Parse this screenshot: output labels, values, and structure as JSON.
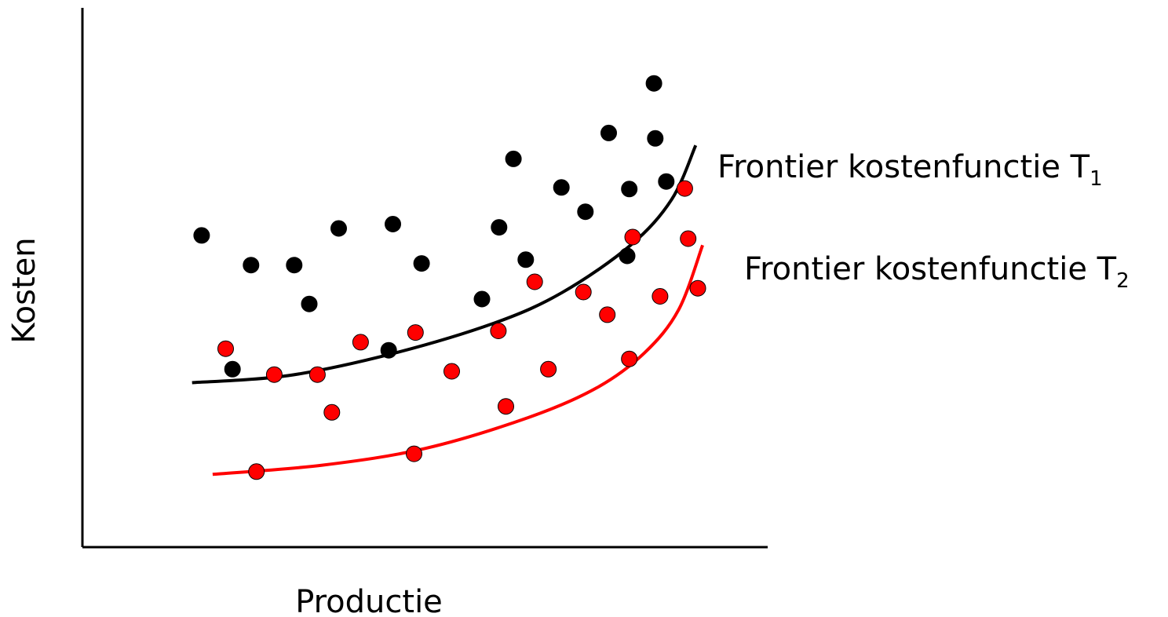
{
  "chart_data": {
    "type": "scatter",
    "xlabel": "Productie",
    "ylabel": "Kosten",
    "axis_ticks": false,
    "xlim": [
      0,
      100
    ],
    "ylim": [
      0,
      100
    ],
    "colors": {
      "t1": "#000000",
      "t2": "#ff0000"
    },
    "series": [
      {
        "color": "#000000",
        "values": [
          [
            17.4,
            57.8
          ],
          [
            24.6,
            52.3
          ],
          [
            30.9,
            52.3
          ],
          [
            33.1,
            45.1
          ],
          [
            37.4,
            59.1
          ],
          [
            45.3,
            59.9
          ],
          [
            49.5,
            52.6
          ],
          [
            44.7,
            36.5
          ],
          [
            21.9,
            33.0
          ],
          [
            58.3,
            46.0
          ],
          [
            60.8,
            59.3
          ],
          [
            62.9,
            72.0
          ],
          [
            64.7,
            53.3
          ],
          [
            69.9,
            66.7
          ],
          [
            73.4,
            62.2
          ],
          [
            76.8,
            76.8
          ],
          [
            79.5,
            54.0
          ],
          [
            79.8,
            66.4
          ],
          [
            83.4,
            86.0
          ],
          [
            83.6,
            75.8
          ],
          [
            85.2,
            67.8
          ]
        ]
      },
      {
        "color": "#ff0000",
        "values": [
          [
            20.9,
            36.8
          ],
          [
            28.0,
            32.0
          ],
          [
            34.3,
            32.0
          ],
          [
            36.4,
            25.0
          ],
          [
            40.6,
            38.0
          ],
          [
            48.6,
            39.8
          ],
          [
            53.9,
            32.6
          ],
          [
            60.7,
            40.1
          ],
          [
            61.8,
            26.1
          ],
          [
            66.0,
            49.2
          ],
          [
            68.0,
            33.0
          ],
          [
            73.1,
            47.3
          ],
          [
            76.6,
            43.1
          ],
          [
            80.3,
            57.5
          ],
          [
            84.3,
            46.5
          ],
          [
            87.9,
            66.5
          ],
          [
            88.4,
            57.2
          ],
          [
            89.8,
            48.0
          ],
          [
            25.4,
            14.0
          ],
          [
            48.4,
            17.3
          ],
          [
            79.8,
            34.9
          ]
        ]
      }
    ],
    "curves": [
      {
        "name": "Frontier kostenfunctie T",
        "subscript": "1",
        "color": "#000000",
        "points": [
          [
            16,
            30.5
          ],
          [
            30,
            31.8
          ],
          [
            45,
            35.8
          ],
          [
            60,
            41.5
          ],
          [
            70,
            47.2
          ],
          [
            80,
            56.0
          ],
          [
            86,
            64.5
          ],
          [
            89.5,
            74.5
          ]
        ]
      },
      {
        "name": "Frontier kostenfunctie T",
        "subscript": "2",
        "color": "#ff0000",
        "points": [
          [
            19,
            13.5
          ],
          [
            35,
            15.2
          ],
          [
            50,
            18.3
          ],
          [
            65,
            24.0
          ],
          [
            75,
            29.5
          ],
          [
            82,
            36.0
          ],
          [
            87,
            44.0
          ],
          [
            90.5,
            56.0
          ]
        ]
      }
    ]
  }
}
